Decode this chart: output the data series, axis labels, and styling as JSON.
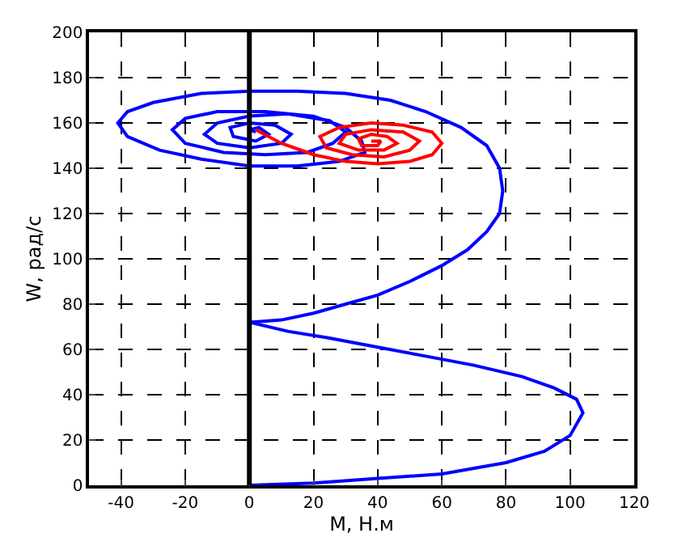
{
  "chart_data": {
    "type": "line",
    "xlabel": "M, Н.м",
    "ylabel": "W, рад/с",
    "xlim": [
      -50,
      120
    ],
    "xticks": [
      -40,
      -20,
      0,
      20,
      40,
      60,
      80,
      100,
      120
    ],
    "ylim": [
      0,
      200
    ],
    "yticks": [
      0,
      20,
      40,
      60,
      80,
      100,
      120,
      140,
      160,
      180,
      200
    ],
    "grid": true,
    "marker": "none",
    "line_style": "solid",
    "ref_lines": [
      {
        "axis": "x",
        "value": 0,
        "color": "#000000"
      }
    ],
    "series": [
      {
        "color": "#0000ff",
        "x": [
          0,
          20,
          40,
          60,
          80,
          92,
          100,
          104,
          102,
          95,
          85,
          70,
          55,
          40,
          25,
          12,
          0,
          10,
          20,
          30,
          40,
          50,
          60,
          68,
          74,
          78,
          79,
          78,
          74,
          66,
          55,
          44,
          30,
          15,
          0,
          -15,
          -30,
          -38,
          -41,
          -38,
          -28,
          -15,
          0,
          15,
          28,
          36,
          35,
          30,
          20,
          5,
          -10,
          -20,
          -24,
          -20,
          -8,
          5,
          18,
          26,
          30,
          25,
          12,
          0,
          -10,
          -14,
          -10,
          0,
          10,
          13,
          8,
          0,
          -6,
          -5,
          2,
          6,
          3,
          0,
          2
        ],
        "values": [
          0,
          1,
          3,
          5,
          10,
          15,
          22,
          32,
          38,
          43,
          48,
          53,
          57,
          61,
          65,
          68,
          72,
          73,
          76,
          80,
          84,
          90,
          97,
          104,
          112,
          120,
          130,
          140,
          150,
          158,
          165,
          170,
          173,
          174,
          174,
          173,
          169,
          165,
          160,
          154,
          148,
          144,
          141,
          141,
          143,
          147,
          152,
          158,
          163,
          165,
          165,
          162,
          157,
          151,
          147,
          146,
          147,
          151,
          156,
          161,
          164,
          163,
          160,
          155,
          151,
          149,
          151,
          155,
          159,
          160,
          158,
          154,
          152,
          155,
          158,
          157,
          156
        ]
      },
      {
        "color": "#ff0000",
        "x": [
          2,
          10,
          20,
          30,
          40,
          50,
          57,
          60,
          57,
          48,
          38,
          28,
          22,
          24,
          32,
          42,
          50,
          53,
          48,
          38,
          30,
          28,
          34,
          42,
          46,
          43,
          38,
          34,
          35,
          40,
          41,
          38
        ],
        "values": [
          157,
          151,
          146,
          143,
          142,
          143,
          146,
          151,
          156,
          159,
          160,
          158,
          154,
          149,
          146,
          145,
          148,
          152,
          156,
          157,
          155,
          151,
          148,
          148,
          151,
          154,
          155,
          153,
          150,
          150,
          152,
          152
        ]
      }
    ]
  }
}
